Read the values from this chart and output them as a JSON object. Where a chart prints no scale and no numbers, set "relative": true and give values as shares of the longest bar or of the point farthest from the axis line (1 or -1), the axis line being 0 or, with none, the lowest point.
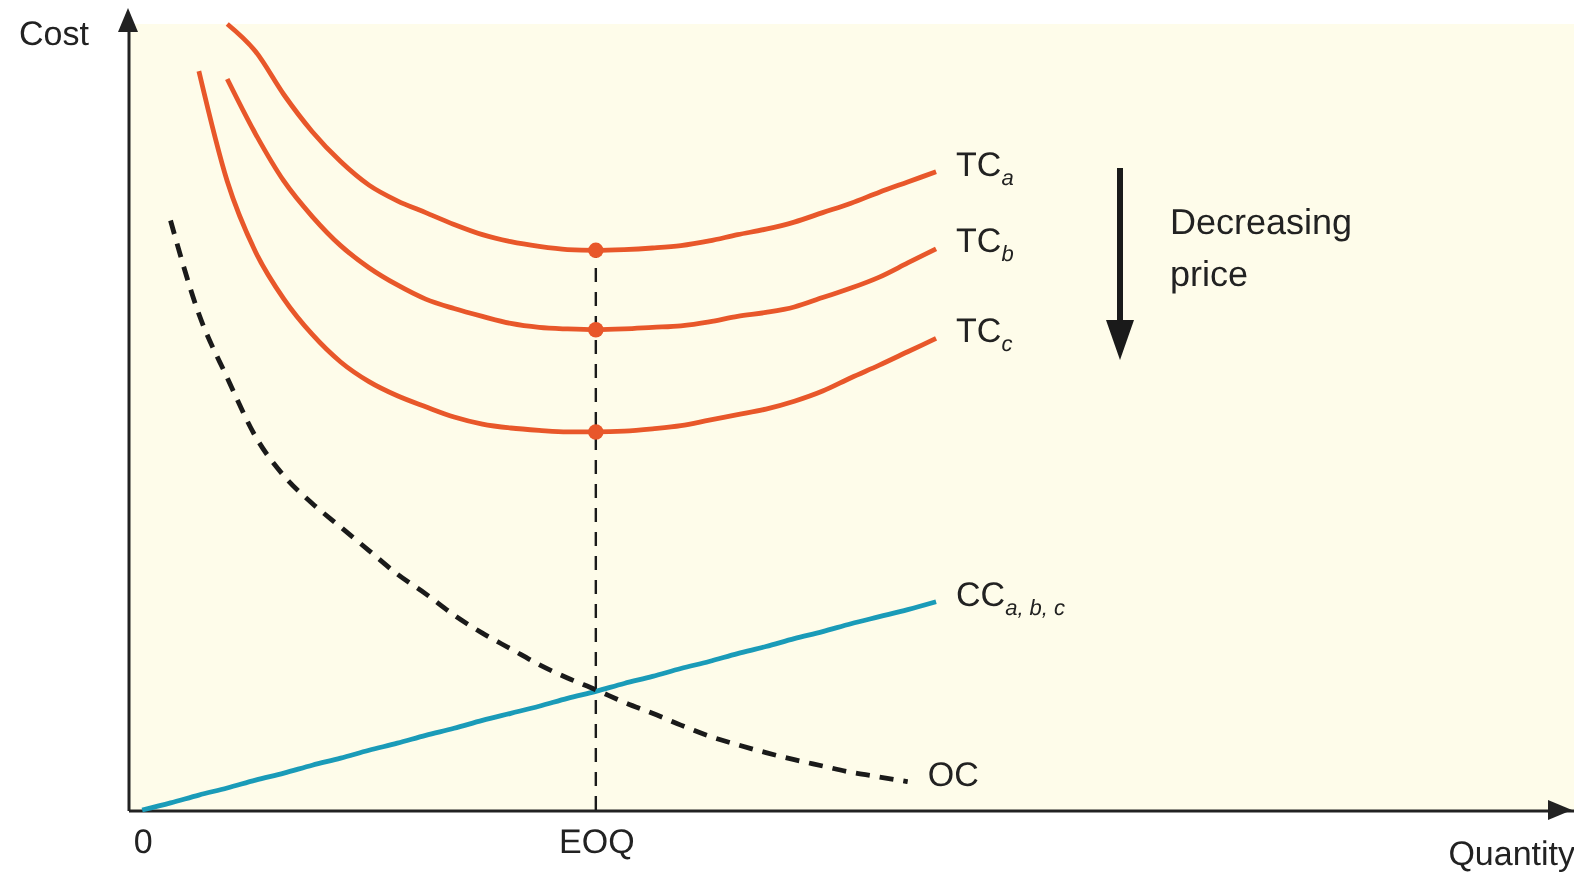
{
  "chart_data": {
    "type": "line",
    "relative": true,
    "xlabel": "Quantity",
    "ylabel": "Cost",
    "categories": [
      "0",
      null,
      null,
      null,
      null,
      null,
      null,
      null,
      null,
      null,
      null,
      null,
      null,
      null,
      null,
      null,
      "EOQ",
      null,
      null,
      null,
      null,
      null,
      null,
      null,
      null,
      null,
      null,
      null,
      null,
      null,
      null,
      null,
      null,
      null,
      null,
      null,
      null,
      null,
      null,
      null,
      null,
      null,
      null,
      null,
      null,
      null,
      null,
      null,
      null,
      null,
      null
    ],
    "annotations": [
      "Decreasing price"
    ],
    "ref_lines": [
      {
        "axis": "x",
        "value": "EOQ",
        "color": "#1a1a1a",
        "line_style": "dashed"
      }
    ],
    "series": [
      {
        "name": "TC$_{a}$",
        "color": "#e8572a",
        "values": [
          null,
          null,
          null,
          1.0,
          0.965,
          0.91,
          0.863,
          0.825,
          0.795,
          0.775,
          0.76,
          0.745,
          0.732,
          0.723,
          0.717,
          0.713,
          0.712,
          0.713,
          0.715,
          0.718,
          0.724,
          0.732,
          0.739,
          0.748,
          0.76,
          0.772,
          0.786,
          0.799,
          0.812,
          null,
          null,
          null,
          null,
          null,
          null,
          null,
          null,
          null,
          null,
          null,
          null,
          null,
          null,
          null,
          null,
          null,
          null,
          null,
          null,
          null,
          null
        ]
      },
      {
        "name": "TC$_{b}$",
        "color": "#e8572a",
        "values": [
          null,
          null,
          null,
          0.93,
          0.86,
          0.8,
          0.755,
          0.718,
          0.69,
          0.668,
          0.65,
          0.638,
          0.628,
          0.619,
          0.614,
          0.612,
          0.611,
          0.612,
          0.614,
          0.616,
          0.621,
          0.628,
          0.633,
          0.64,
          0.652,
          0.664,
          0.678,
          0.696,
          0.714,
          null,
          null,
          null,
          null,
          null,
          null,
          null,
          null,
          null,
          null,
          null,
          null,
          null,
          null,
          null,
          null,
          null,
          null,
          null,
          null,
          null,
          null
        ]
      },
      {
        "name": "TC$_{c}$",
        "color": "#e8572a",
        "values": [
          null,
          null,
          0.94,
          0.8,
          0.71,
          0.65,
          0.605,
          0.57,
          0.545,
          0.527,
          0.513,
          0.5,
          0.491,
          0.486,
          0.483,
          0.481,
          0.481,
          0.482,
          0.485,
          0.489,
          0.496,
          0.503,
          0.51,
          0.52,
          0.533,
          0.55,
          0.566,
          0.583,
          0.6,
          null,
          null,
          null,
          null,
          null,
          null,
          null,
          null,
          null,
          null,
          null,
          null,
          null,
          null,
          null,
          null,
          null,
          null,
          null,
          null,
          null,
          null
        ]
      },
      {
        "name": "CC$_{a, b, c}$",
        "color": "#1a9bb8",
        "values": [
          0,
          0.009,
          0.019,
          0.028,
          0.038,
          0.047,
          0.057,
          0.066,
          0.076,
          0.085,
          0.095,
          0.104,
          0.114,
          0.123,
          0.132,
          0.142,
          0.151,
          0.161,
          0.17,
          0.18,
          0.189,
          0.199,
          0.208,
          0.218,
          0.227,
          0.237,
          0.246,
          0.255,
          0.265,
          null,
          null,
          null,
          null,
          null,
          null,
          null,
          null,
          null,
          null,
          null,
          null,
          null,
          null,
          null,
          null,
          null,
          null,
          null,
          null,
          null,
          null
        ]
      },
      {
        "name": "OC",
        "color": "#1a1a1a",
        "line_style": "dashed",
        "values": [
          null,
          0.75,
          0.631,
          0.55,
          0.475,
          0.425,
          0.39,
          0.36,
          0.33,
          0.3,
          0.275,
          0.248,
          0.225,
          0.205,
          0.185,
          0.168,
          0.153,
          0.137,
          0.123,
          0.108,
          0.094,
          0.083,
          0.073,
          0.064,
          0.056,
          0.048,
          0.042,
          0.036,
          null,
          null,
          null,
          null,
          null,
          null,
          null,
          null,
          null,
          null,
          null,
          null,
          null,
          null,
          null,
          null,
          null,
          null,
          null,
          null,
          null,
          null,
          null
        ]
      },
      {
        "type": "scatter",
        "marker": "circle",
        "color": "#e8572a",
        "x": [
          "EOQ",
          "EOQ",
          "EOQ"
        ],
        "values": [
          0.712,
          0.611,
          0.481
        ]
      }
    ]
  }
}
